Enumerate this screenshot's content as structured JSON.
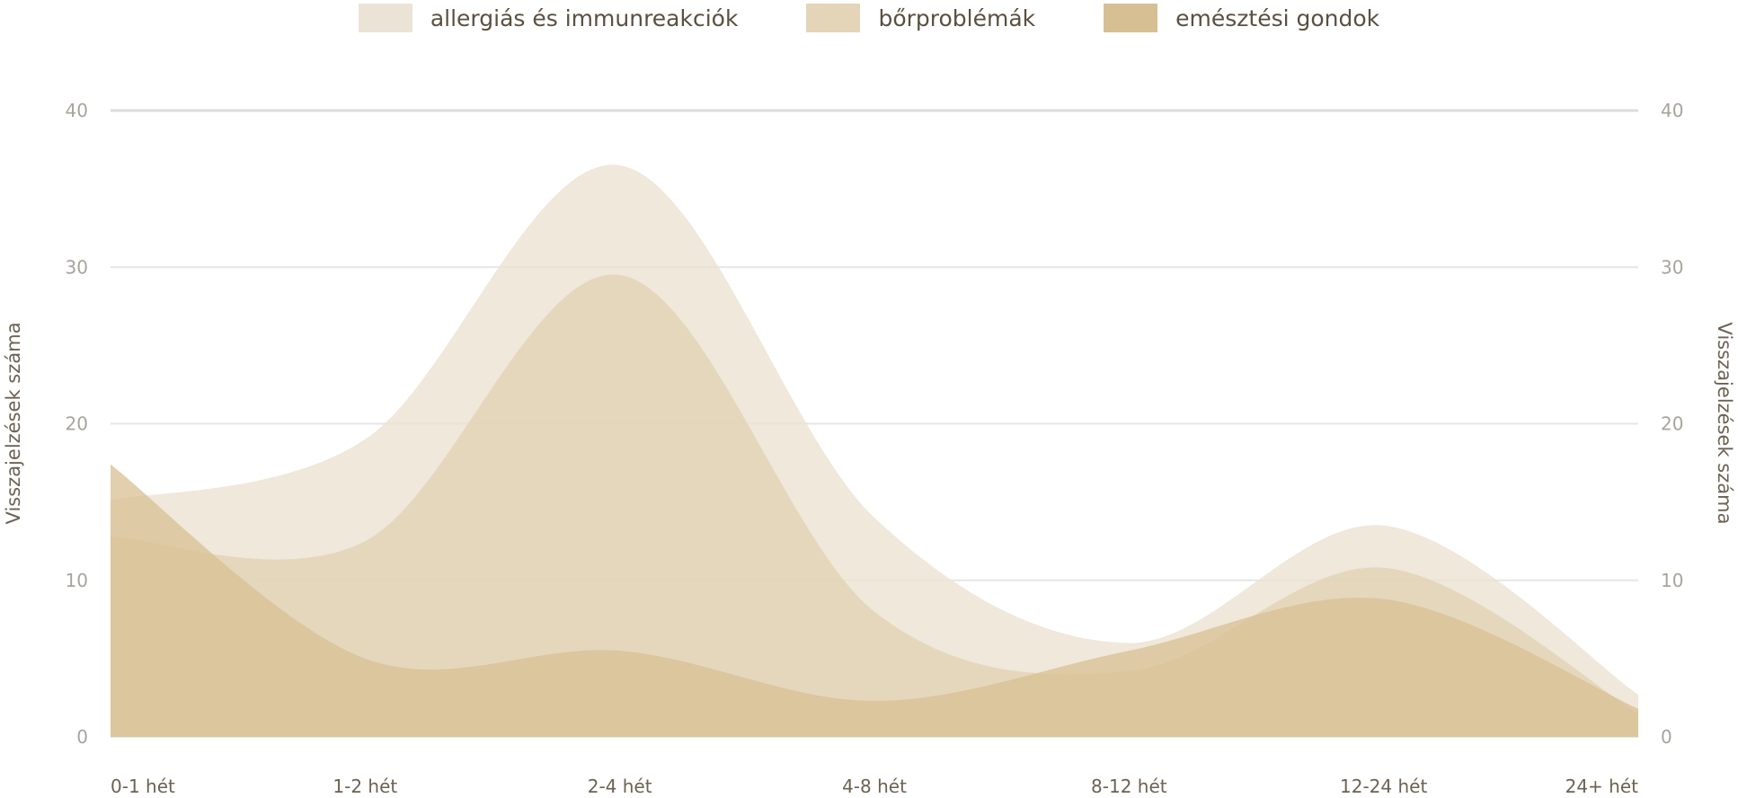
{
  "chart_data": {
    "type": "area",
    "title": "",
    "categories": [
      "0-1 hét",
      "1-2 hét",
      "2-4 hét",
      "4-8 hét",
      "8-12 hét",
      "12-24 hét",
      "24+ hét"
    ],
    "series": [
      {
        "name": "allergiás és immunreakciók",
        "color": "#ebe1d1",
        "values": [
          15.1,
          19,
          36.5,
          14,
          6,
          13.5,
          2.7
        ]
      },
      {
        "name": "bőrproblémák",
        "color": "#e2d2b3",
        "values": [
          12.8,
          12.5,
          29.5,
          8,
          4.2,
          10.8,
          1.5
        ]
      },
      {
        "name": "emésztési gondok",
        "color": "#d8c196",
        "values": [
          17.4,
          5,
          5.5,
          2.3,
          5.5,
          8.8,
          1.8
        ]
      }
    ],
    "ylabel_left": "Visszajelzések száma",
    "ylabel_right": "Visszajelzések száma",
    "yticks": [
      "0",
      "10",
      "20",
      "30",
      "40"
    ],
    "ylim": [
      0,
      40
    ],
    "grid": true,
    "legend": "top-center"
  }
}
